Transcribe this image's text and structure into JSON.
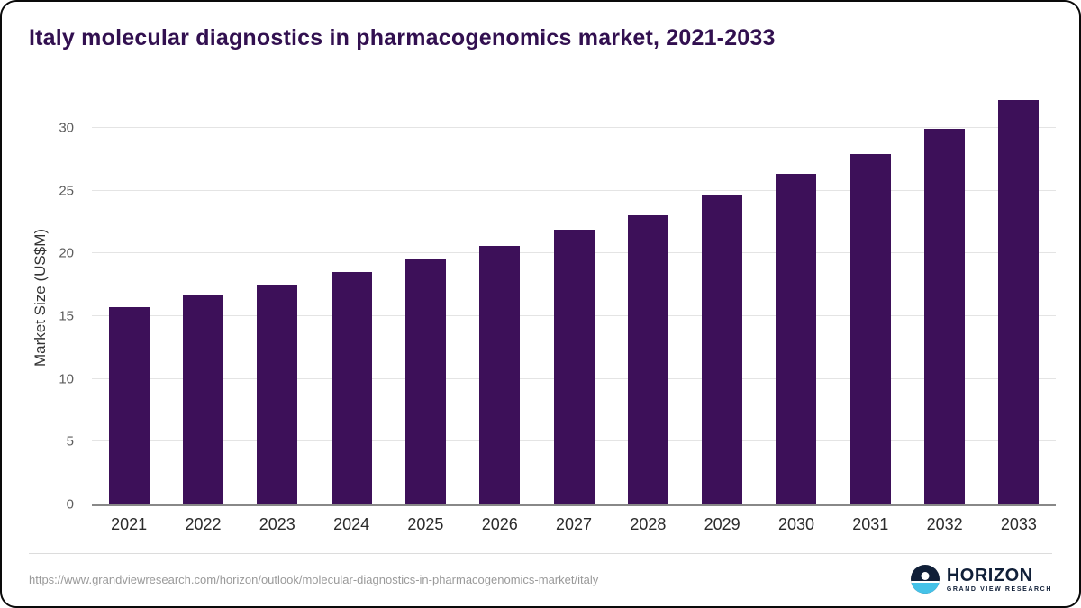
{
  "title": "Italy molecular diagnostics in pharmacogenomics market, 2021-2033",
  "footer": {
    "source_url": "https://www.grandviewresearch.com/horizon/outlook/molecular-diagnostics-in-pharmacogenomics-market/italy",
    "logo_title": "HORIZON",
    "logo_subtitle": "GRAND VIEW RESEARCH"
  },
  "colors": {
    "bar": "#3d1059",
    "title": "#321050",
    "grid": "#e4e4e4",
    "axis": "#888888",
    "tick_label": "#5c5c5c",
    "x_label": "#2b2b2b",
    "logo_navy": "#101f38",
    "logo_cyan": "#45c2e8"
  },
  "chart_data": {
    "type": "bar",
    "title": "Italy molecular diagnostics in pharmacogenomics market, 2021-2033",
    "categories": [
      "2021",
      "2022",
      "2023",
      "2024",
      "2025",
      "2026",
      "2027",
      "2028",
      "2029",
      "2030",
      "2031",
      "2032",
      "2033"
    ],
    "values": [
      15.7,
      16.7,
      17.5,
      18.5,
      19.6,
      20.6,
      21.9,
      23.0,
      24.7,
      26.3,
      27.9,
      29.9,
      32.2
    ],
    "xlabel": "",
    "ylabel": "Market Size (US$M)",
    "ylim": [
      0,
      33
    ],
    "yticks": [
      0,
      5,
      10,
      15,
      20,
      25,
      30
    ],
    "grid": true,
    "legend": false,
    "bar_color": "#3d1059"
  }
}
